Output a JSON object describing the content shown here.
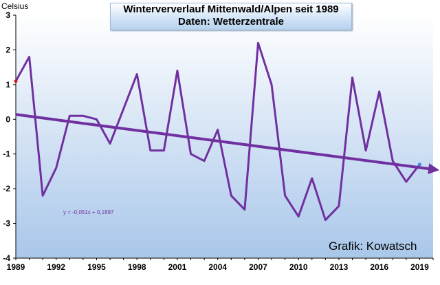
{
  "chart_data": {
    "type": "line",
    "title": "Winterververlauf Mittenwald/Alpen seit 1989",
    "subtitle": "Daten: Wetterzentrale",
    "ylabel": "Celsius",
    "xlabel": "",
    "x": [
      1989,
      1990,
      1991,
      1992,
      1993,
      1994,
      1995,
      1996,
      1997,
      1998,
      1999,
      2000,
      2001,
      2002,
      2003,
      2004,
      2005,
      2006,
      2007,
      2008,
      2009,
      2010,
      2011,
      2012,
      2013,
      2014,
      2015,
      2016,
      2017,
      2018,
      2019
    ],
    "series": [
      {
        "values": [
          1.1,
          1.8,
          -2.2,
          -1.4,
          0.1,
          0.1,
          0.0,
          -0.7,
          0.3,
          1.3,
          -0.9,
          -0.9,
          1.4,
          -1.0,
          -1.2,
          -0.3,
          -2.2,
          -2.6,
          2.2,
          1.0,
          -2.2,
          -2.8,
          -1.7,
          -2.9,
          -2.5,
          1.2,
          -0.9,
          0.8,
          -1.2,
          -1.8,
          -1.3
        ]
      }
    ],
    "trendline": {
      "equation": "y = -0,051x + 0,1897",
      "slope": -0.051,
      "intercept": 0.1897
    },
    "xlim": [
      1989,
      2020
    ],
    "ylim": [
      -4,
      3
    ],
    "xticks": [
      1989,
      1992,
      1995,
      1998,
      2001,
      2004,
      2007,
      2010,
      2013,
      2016,
      2019
    ],
    "yticks": [
      3,
      2,
      1,
      0,
      -1,
      -2,
      -3,
      -4
    ],
    "grid": false,
    "line_color": "#7030a0",
    "background_gradient": [
      "#ffffff",
      "#a9c7ea"
    ]
  },
  "credit": "Grafik: Kowatsch"
}
